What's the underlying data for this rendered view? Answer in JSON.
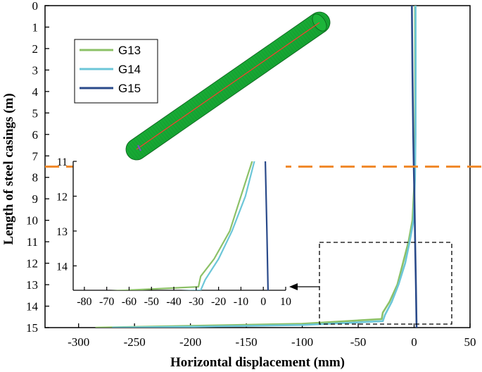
{
  "chart_data": {
    "type": "line",
    "xlabel": "Horizontal displacement (mm)",
    "ylabel": "Length of steel casings (m)",
    "xlim": [
      -330,
      50
    ],
    "ylim": [
      15,
      0
    ],
    "xticks": [
      "-300",
      "-250",
      "-200",
      "-150",
      "-100",
      "-50",
      "0",
      "50"
    ],
    "yticks": [
      "0",
      "1",
      "2",
      "3",
      "4",
      "5",
      "6",
      "7",
      "8",
      "9",
      "10",
      "11",
      "12",
      "13",
      "14",
      "15"
    ],
    "reference_line": {
      "y": 7.5,
      "style": "dashed",
      "color": "#f08a2c"
    },
    "series": [
      {
        "name": "G13",
        "color": "#8cc167",
        "points": [
          [
            0.8,
            0
          ],
          [
            0.9,
            3
          ],
          [
            0.9,
            6
          ],
          [
            0.5,
            8
          ],
          [
            -1.5,
            10
          ],
          [
            -5,
            11
          ],
          [
            -10,
            12
          ],
          [
            -15,
            13
          ],
          [
            -22,
            13.8
          ],
          [
            -28,
            14.3
          ],
          [
            -29,
            14.6
          ],
          [
            -100,
            14.82
          ],
          [
            -200,
            14.92
          ],
          [
            -285,
            15
          ]
        ]
      },
      {
        "name": "G14",
        "color": "#6cc6d8",
        "points": [
          [
            1.3,
            0
          ],
          [
            1.4,
            3
          ],
          [
            1.3,
            6
          ],
          [
            0.8,
            8
          ],
          [
            -0.5,
            10
          ],
          [
            -4,
            11
          ],
          [
            -8,
            12
          ],
          [
            -14,
            13
          ],
          [
            -20,
            13.8
          ],
          [
            -26,
            14.4
          ],
          [
            -28,
            14.7
          ],
          [
            -100,
            14.88
          ],
          [
            -200,
            14.96
          ],
          [
            -270,
            15
          ]
        ]
      },
      {
        "name": "G15",
        "color": "#2a4a8a",
        "points": [
          [
            -2,
            0
          ],
          [
            -1.5,
            3
          ],
          [
            -0.8,
            6
          ],
          [
            -0.3,
            7.5
          ],
          [
            0.3,
            9
          ],
          [
            0.9,
            11
          ],
          [
            1.6,
            13
          ],
          [
            2.2,
            15
          ]
        ]
      }
    ],
    "inset": {
      "xlim": [
        -85,
        10
      ],
      "ylim": [
        14.7,
        11
      ],
      "xticks": [
        "-80",
        "-70",
        "-60",
        "-50",
        "-40",
        "-30",
        "-20",
        "-10",
        "0",
        "10"
      ],
      "yticks": [
        "11",
        "12",
        "13",
        "14"
      ]
    }
  },
  "colors": {
    "casing_body": "#1ea83a",
    "casing_axis": "#ff3b30",
    "zoom_box": "#000000",
    "arrow": "#000000"
  }
}
